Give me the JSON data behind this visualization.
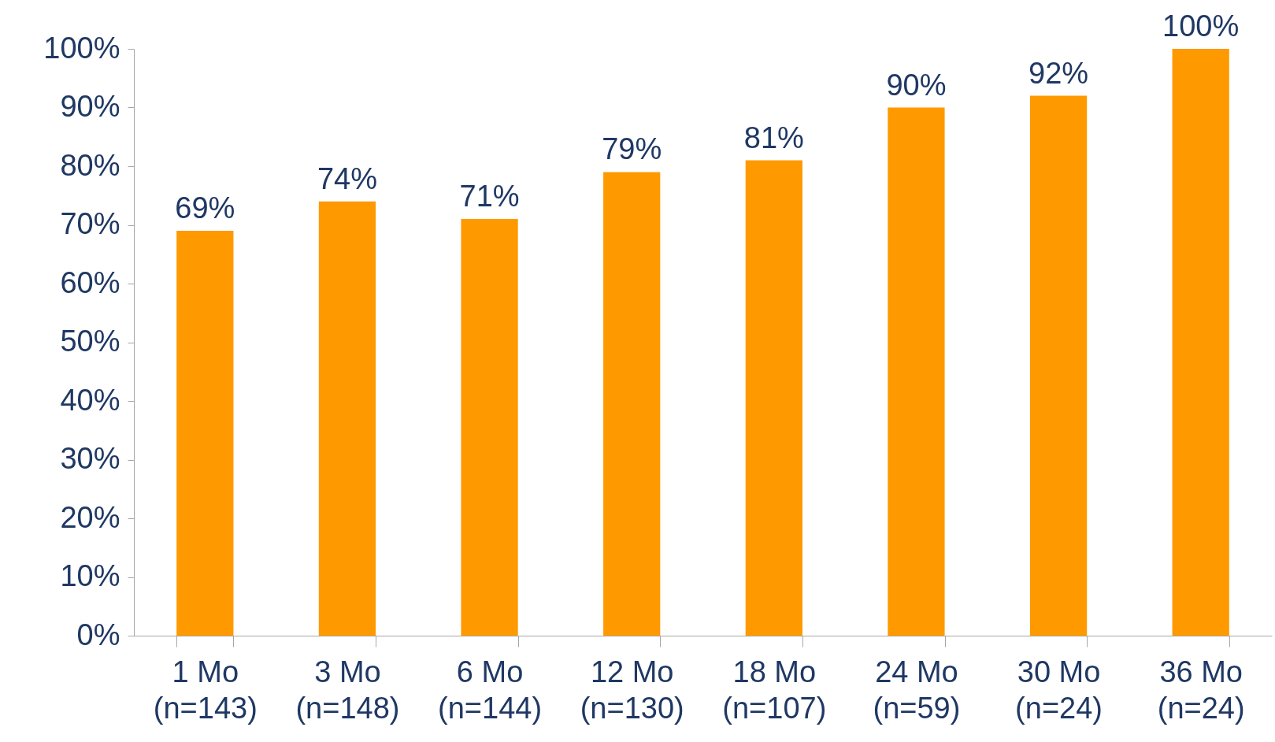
{
  "chart_data": {
    "type": "bar",
    "categories": [
      "1 Mo\n(n=143)",
      "3 Mo\n(n=148)",
      "6 Mo\n(n=144)",
      "12 Mo\n(n=130)",
      "18 Mo\n(n=107)",
      "24 Mo\n(n=59)",
      "30 Mo\n(n=24)",
      "36 Mo\n(n=24)"
    ],
    "values": [
      69,
      74,
      71,
      79,
      81,
      90,
      92,
      100
    ],
    "value_labels": [
      "69%",
      "74%",
      "71%",
      "79%",
      "81%",
      "90%",
      "92%",
      "100%"
    ],
    "color": "#ff9900",
    "ylim": [
      0,
      100
    ],
    "yticks": [
      {
        "value": 0,
        "label": "0%"
      },
      {
        "value": 10,
        "label": "10%"
      },
      {
        "value": 20,
        "label": "20%"
      },
      {
        "value": 30,
        "label": "30%"
      },
      {
        "value": 40,
        "label": "40%"
      },
      {
        "value": 50,
        "label": "50%"
      },
      {
        "value": 60,
        "label": "60%"
      },
      {
        "value": 70,
        "label": "70%"
      },
      {
        "value": 80,
        "label": "80%"
      },
      {
        "value": 90,
        "label": "90%"
      },
      {
        "value": 100,
        "label": "100%"
      }
    ],
    "grid": false
  }
}
